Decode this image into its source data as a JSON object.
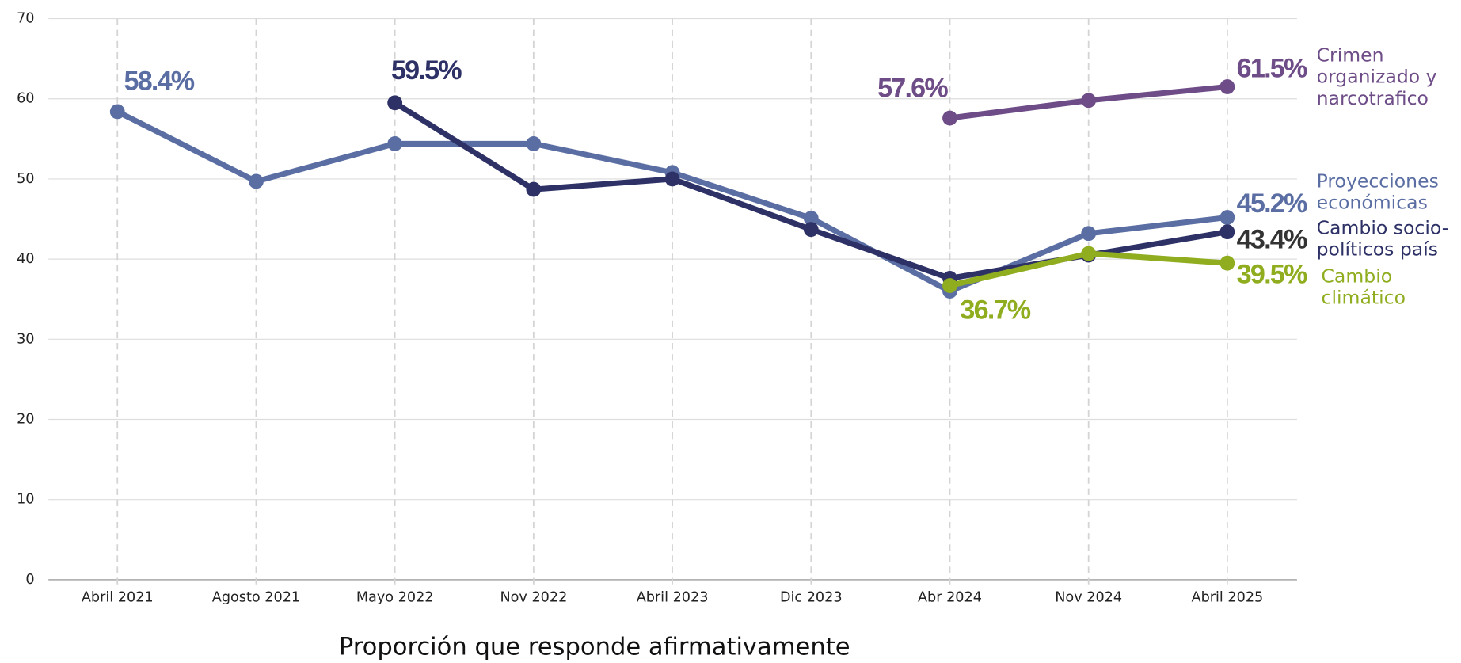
{
  "chart_data": {
    "type": "line",
    "x_label": "Proporción que responde afirmativamente",
    "categories": [
      "Abril 2021",
      "Agosto 2021",
      "Mayo 2022",
      "Nov 2022",
      "Abril 2023",
      "Dic 2023",
      "Abr 2024",
      "Nov 2024",
      "Abril 2025"
    ],
    "series": [
      {
        "name": "Proyecciones económicas",
        "color": "#5a6ea3",
        "values": [
          58.4,
          49.7,
          54.4,
          54.4,
          50.8,
          45.1,
          36.0,
          43.2,
          45.2
        ],
        "value_labels": [
          "58.4%",
          null,
          null,
          null,
          null,
          null,
          null,
          null,
          "45.2%"
        ]
      },
      {
        "name": "Cambio socio-políticos país",
        "color": "#2d3166",
        "values": [
          null,
          null,
          59.5,
          48.7,
          50.0,
          43.7,
          37.6,
          40.5,
          43.4
        ],
        "value_labels": [
          null,
          null,
          "59.5%",
          null,
          null,
          null,
          null,
          null,
          "43.4%"
        ]
      },
      {
        "name": "Crimen organizado y narcotrafico",
        "color": "#6e4c87",
        "values": [
          null,
          null,
          null,
          null,
          null,
          null,
          57.6,
          59.8,
          61.5
        ],
        "value_labels": [
          null,
          null,
          null,
          null,
          null,
          null,
          "57.6%",
          null,
          "61.5%"
        ]
      },
      {
        "name": "Cambio climático",
        "color": "#8fad1e",
        "values": [
          null,
          null,
          null,
          null,
          null,
          null,
          36.7,
          40.7,
          39.5
        ],
        "value_labels": [
          null,
          null,
          null,
          null,
          null,
          null,
          "36.7%",
          null,
          "39.5%"
        ]
      }
    ],
    "ylim": [
      0,
      70
    ],
    "yticks": [
      0,
      10,
      20,
      30,
      40,
      50,
      60,
      70
    ],
    "grid": true
  }
}
